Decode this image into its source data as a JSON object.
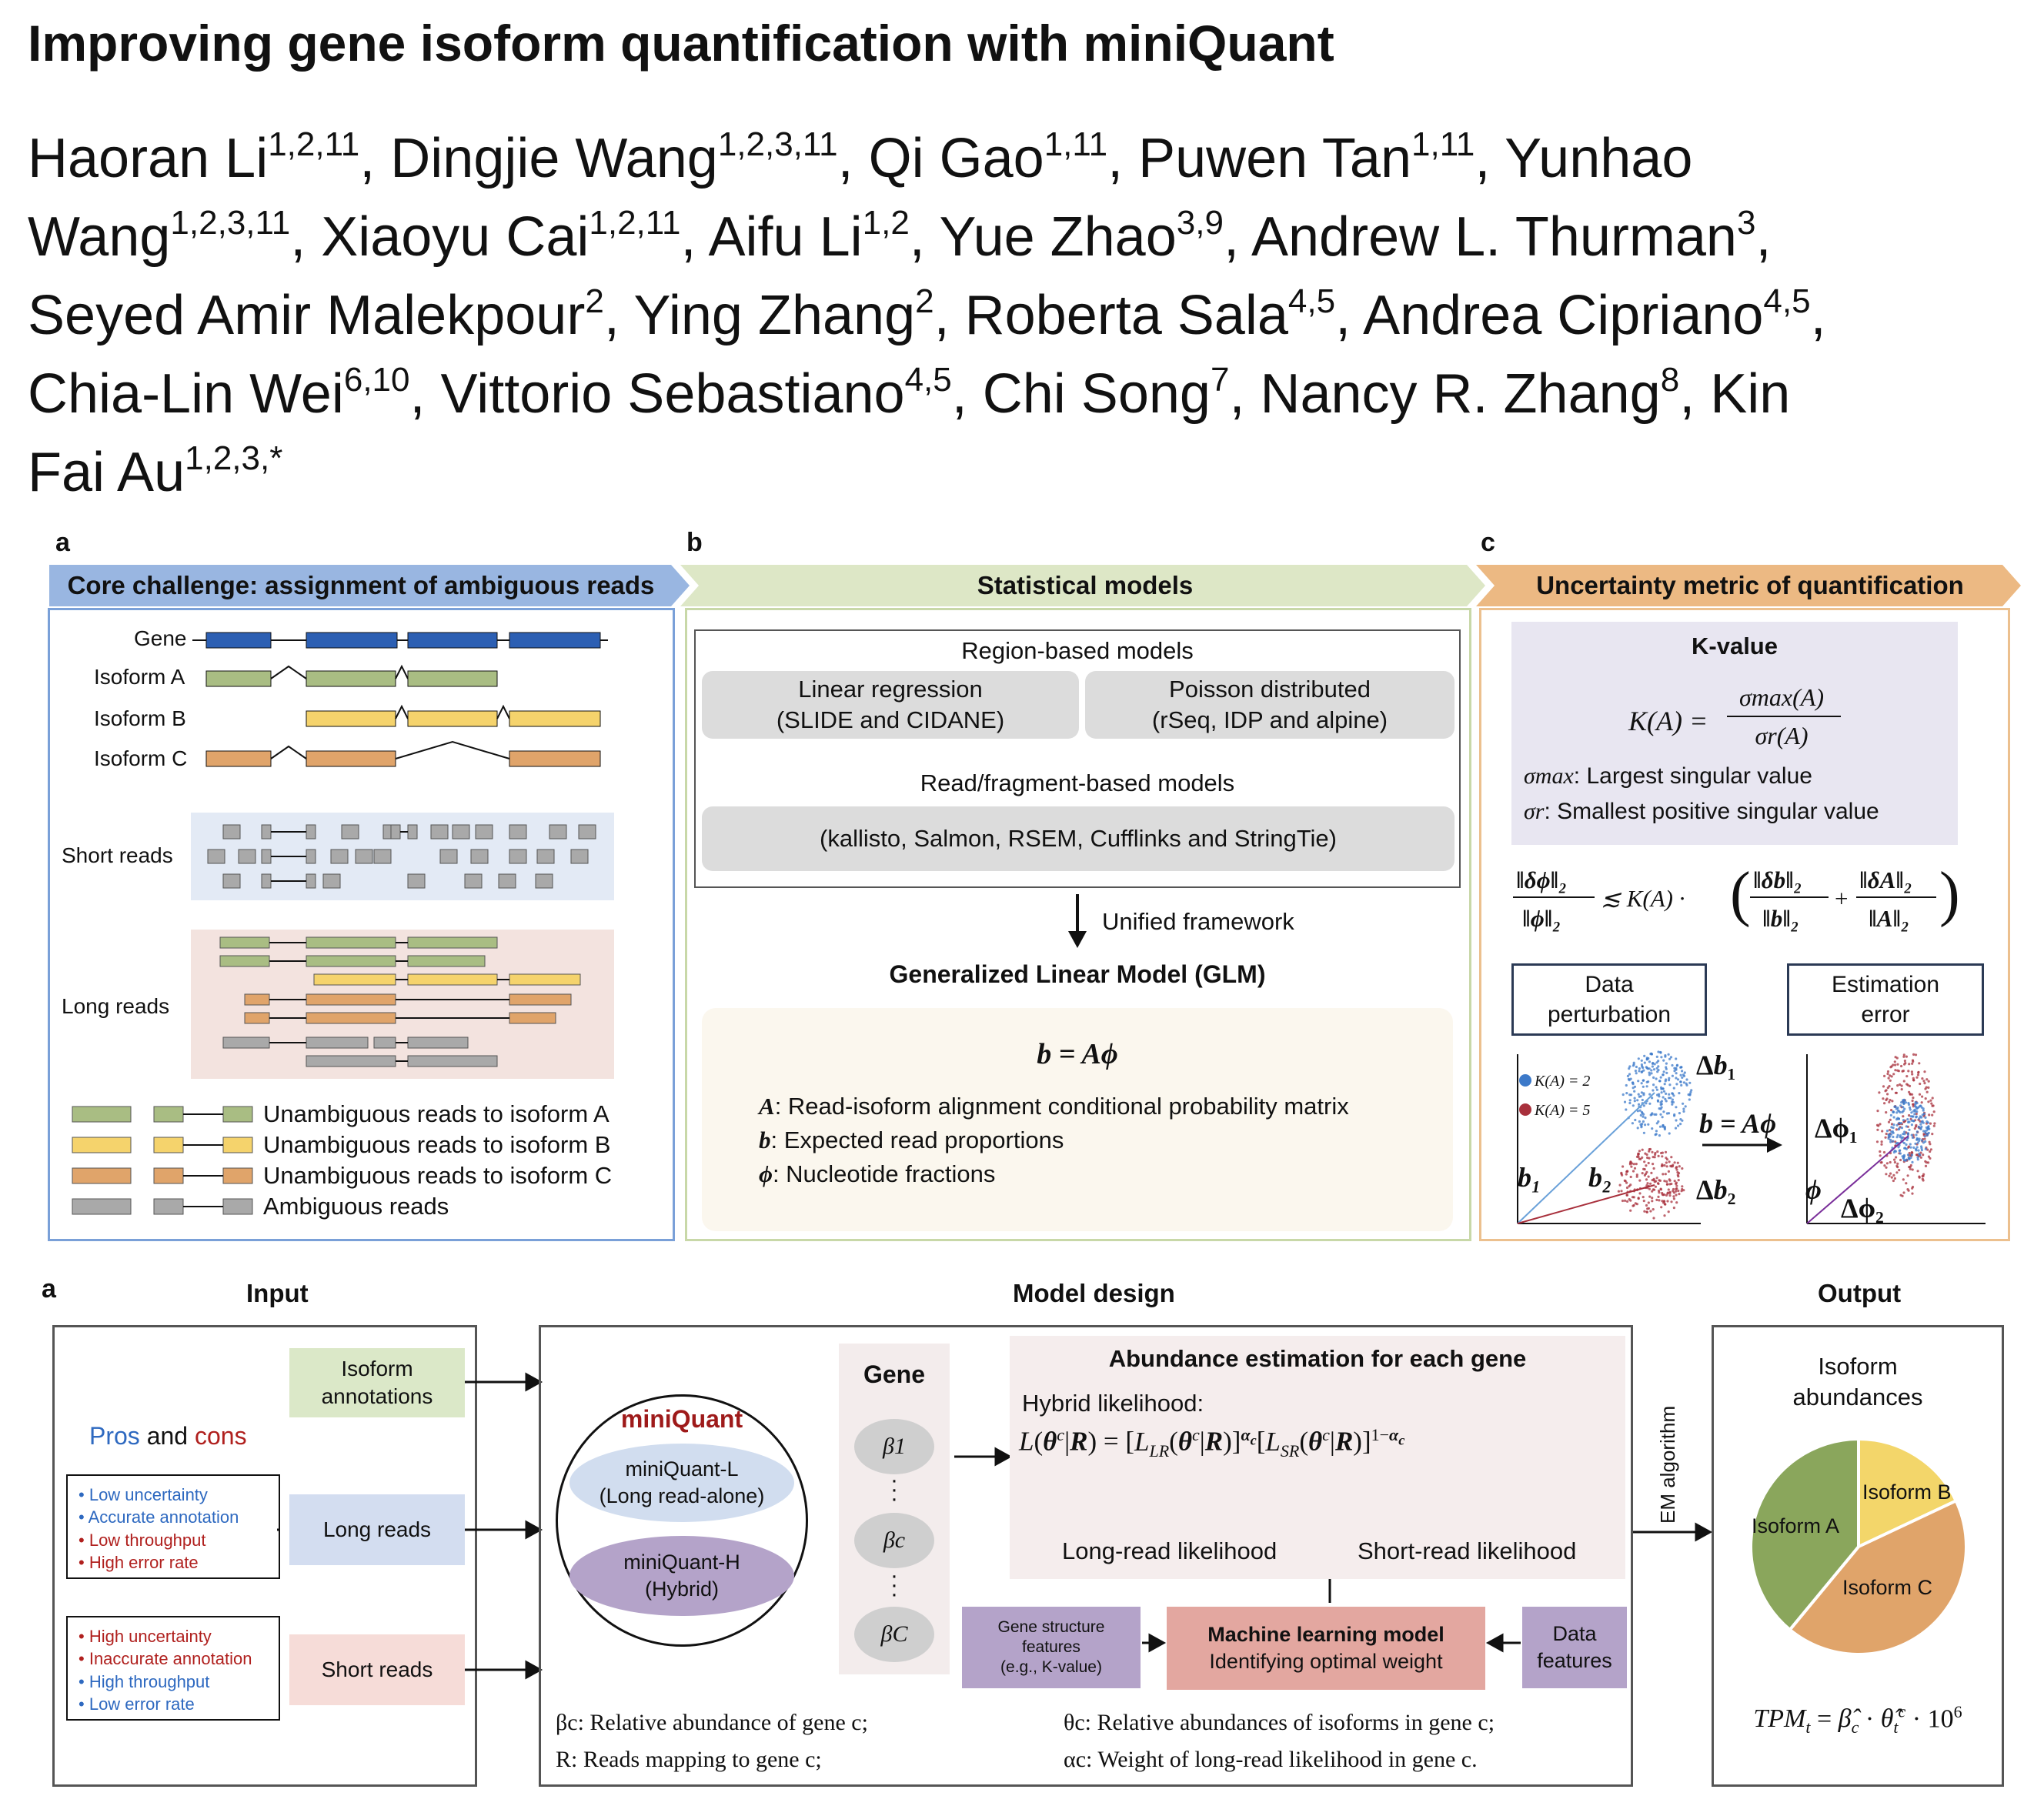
{
  "title": "Improving gene isoform quantification with miniQuant",
  "authors": {
    "line1": [
      {
        "name": "Haoran Li",
        "sup": "1,2,11"
      },
      {
        "sep": ", "
      },
      {
        "name": "Dingjie Wang",
        "sup": "1,2,3,11"
      },
      {
        "sep": ", "
      },
      {
        "name": "Qi Gao",
        "sup": "1,11"
      },
      {
        "sep": ", "
      },
      {
        "name": "Puwen Tan",
        "sup": "1,11"
      },
      {
        "sep": ", Yunhao"
      }
    ],
    "line2": [
      {
        "name": "Wang",
        "sup": "1,2,3,11"
      },
      {
        "sep": ", "
      },
      {
        "name": "Xiaoyu Cai",
        "sup": "1,2,11"
      },
      {
        "sep": ", "
      },
      {
        "name": "Aifu Li",
        "sup": "1,2"
      },
      {
        "sep": ", "
      },
      {
        "name": "Yue Zhao",
        "sup": "3,9"
      },
      {
        "sep": ", "
      },
      {
        "name": "Andrew L. Thurman",
        "sup": "3"
      },
      {
        "sep": ","
      }
    ],
    "line3": [
      {
        "name": "Seyed Amir Malekpour",
        "sup": "2"
      },
      {
        "sep": ", "
      },
      {
        "name": "Ying Zhang",
        "sup": "2"
      },
      {
        "sep": ", "
      },
      {
        "name": "Roberta Sala",
        "sup": "4,5"
      },
      {
        "sep": ", "
      },
      {
        "name": "Andrea Cipriano",
        "sup": "4,5"
      },
      {
        "sep": ","
      }
    ],
    "line4": [
      {
        "name": "Chia-Lin Wei",
        "sup": "6,10"
      },
      {
        "sep": ", "
      },
      {
        "name": "Vittorio Sebastiano",
        "sup": "4,5"
      },
      {
        "sep": ", "
      },
      {
        "name": "Chi Song",
        "sup": "7"
      },
      {
        "sep": ", "
      },
      {
        "name": "Nancy R. Zhang",
        "sup": "8"
      },
      {
        "sep": ", Kin"
      }
    ],
    "line5": [
      {
        "name": "Fai Au",
        "sup": "1,2,3,*"
      }
    ]
  },
  "panel_a": {
    "label": "a",
    "banner": "Core challenge: assignment of ambiguous reads",
    "tracks": {
      "gene": "Gene",
      "iso_a": "Isoform A",
      "iso_b": "Isoform B",
      "iso_c": "Isoform C"
    },
    "short_reads": "Short reads",
    "long_reads": "Long reads",
    "legend": {
      "a": "Unambiguous reads to isoform A",
      "b": "Unambiguous reads to isoform B",
      "c": "Unambiguous reads to isoform C",
      "amb": "Ambiguous reads"
    }
  },
  "panel_b": {
    "label": "b",
    "banner": "Statistical models",
    "region_models": "Region-based models",
    "linreg": [
      "Linear regression",
      "(SLIDE and CIDANE)"
    ],
    "poisson": [
      "Poisson distributed",
      "(rSeq, IDP and alpine)"
    ],
    "read_models": "Read/fragment-based models",
    "read_tools": "(kallisto, Salmon, RSEM, Cufflinks and StringTie)",
    "unified": "Unified framework",
    "glm": "Generalized Linear Model (GLM)",
    "eq": "b = Aϕ",
    "defs": {
      "A": {
        "sym": "A",
        "text": ": Read-isoform alignment conditional probability matrix"
      },
      "b": {
        "sym": "b",
        "text": ": Expected read proportions"
      },
      "phi": {
        "sym": "ϕ",
        "text": ": Nucleotide fractions"
      }
    }
  },
  "panel_c": {
    "label": "c",
    "banner": "Uncertainty metric of quantification",
    "kvalue": "K-value",
    "k_lhs": "K(A) =",
    "k_num": "σmax(A)",
    "k_den": "σr(A)",
    "smax_sym": "σmax",
    "smax_text": ": Largest singular value",
    "sr_sym": "σr",
    "sr_text": ": Smallest positive singular value",
    "data_perturbation": [
      "Data",
      "perturbation"
    ],
    "estimation_error": [
      "Estimation",
      "error"
    ],
    "legend_k2": "K(A) = 2",
    "legend_k5": "K(A) = 5",
    "colors": {
      "k2": "#3c79c9",
      "k5": "#a8303c"
    }
  },
  "panel_d": {
    "label": "a",
    "input_head": "Input",
    "model_head": "Model design",
    "output_head": "Output",
    "iso_annot": [
      "Isoform",
      "annotations"
    ],
    "long_reads": "Long reads",
    "short_reads": "Short reads",
    "pros": "Pros",
    "and": " and ",
    "cons": "cons",
    "long_list": [
      {
        "text": "Low uncertainty",
        "tone": "blue"
      },
      {
        "text": "Accurate annotation",
        "tone": "blue"
      },
      {
        "text": "Low throughput",
        "tone": "red"
      },
      {
        "text": "High error rate",
        "tone": "red"
      }
    ],
    "short_list": [
      {
        "text": "High uncertainty",
        "tone": "red"
      },
      {
        "text": "Inaccurate annotation",
        "tone": "red"
      },
      {
        "text": "High throughput",
        "tone": "blue"
      },
      {
        "text": "Low error rate",
        "tone": "blue"
      }
    ],
    "miniquant": "miniQuant",
    "mq_l": [
      "miniQuant-L",
      "(Long read-alone)"
    ],
    "mq_h": [
      "miniQuant-H",
      "(Hybrid)"
    ],
    "gene": "Gene",
    "beta1": "β1",
    "betac": "βc",
    "betaC": "βC",
    "abundance_title": "Abundance estimation for each gene",
    "hybrid": "Hybrid likelihood:",
    "long_lik": "Long-read likelihood",
    "short_lik": "Short-read likelihood",
    "gene_struct": [
      "Gene structure",
      "features",
      "(e.g., K-value)"
    ],
    "ml_title": "Machine learning model",
    "ml_sub": "Identifying optimal weight",
    "data_feat": [
      "Data",
      "features"
    ],
    "em": "EM algorithm",
    "iso_abund": [
      "Isoform",
      "abundances"
    ],
    "pie_labels": {
      "a": "Isoform A",
      "b": "Isoform B",
      "c": "Isoform C"
    },
    "pie_fractions": {
      "a": 0.39,
      "b": 0.18,
      "c": 0.43
    },
    "defs": {
      "beta": "βc: Relative abundance of gene c;",
      "R": "R: Reads mapping to gene c;",
      "theta": "θc: Relative abundances of isoforms in gene c;",
      "alpha": "αc: Weight of long-read likelihood in gene c."
    }
  }
}
